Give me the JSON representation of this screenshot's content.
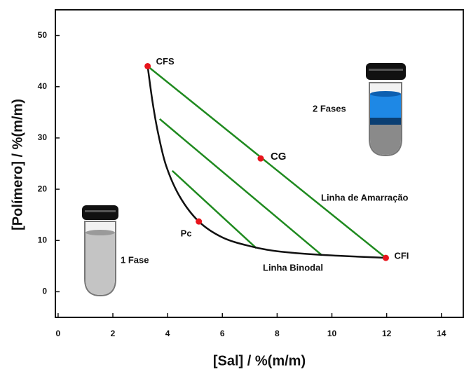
{
  "chart_data": {
    "type": "phase-diagram",
    "x_label": "[Sal] / %(m/m)",
    "y_label": "[Polímero] / %(m/m)",
    "xlim": [
      -0.1,
      14.8
    ],
    "ylim": [
      -5,
      55
    ],
    "xticks": [
      0,
      2,
      4,
      6,
      8,
      10,
      12,
      14
    ],
    "yticks": [
      0,
      10,
      20,
      30,
      40,
      50
    ],
    "binodal": {
      "color": "#111111",
      "x": [
        3.27,
        3.45,
        3.65,
        3.95,
        4.45,
        5.14,
        6.0,
        7.0,
        8.0,
        9.6,
        11.97
      ],
      "values": [
        44,
        37,
        31,
        24.5,
        18.5,
        13.7,
        10.6,
        8.9,
        7.9,
        7.2,
        6.6
      ]
    },
    "tie_line_color": "#1f8a1f",
    "tie_lines": [
      {
        "x": [
          3.27,
          11.97
        ],
        "values": [
          44,
          6.6
        ]
      },
      {
        "x": [
          3.71,
          9.64
        ],
        "values": [
          33.7,
          7.1
        ]
      },
      {
        "x": [
          4.17,
          7.24
        ],
        "values": [
          23.6,
          8.5
        ]
      }
    ],
    "point_color": "#e8141c",
    "points": [
      {
        "label": "CFS",
        "x": 3.27,
        "y": 44
      },
      {
        "label": "CG",
        "x": 7.4,
        "y": 26
      },
      {
        "label": "CFI",
        "x": 11.97,
        "y": 6.6
      },
      {
        "label": "Pc",
        "x": 5.14,
        "y": 13.7
      }
    ],
    "annotations": [
      "Linha de Amarração",
      "Linha Binodal",
      "1 Fase",
      "2 Fases"
    ]
  }
}
